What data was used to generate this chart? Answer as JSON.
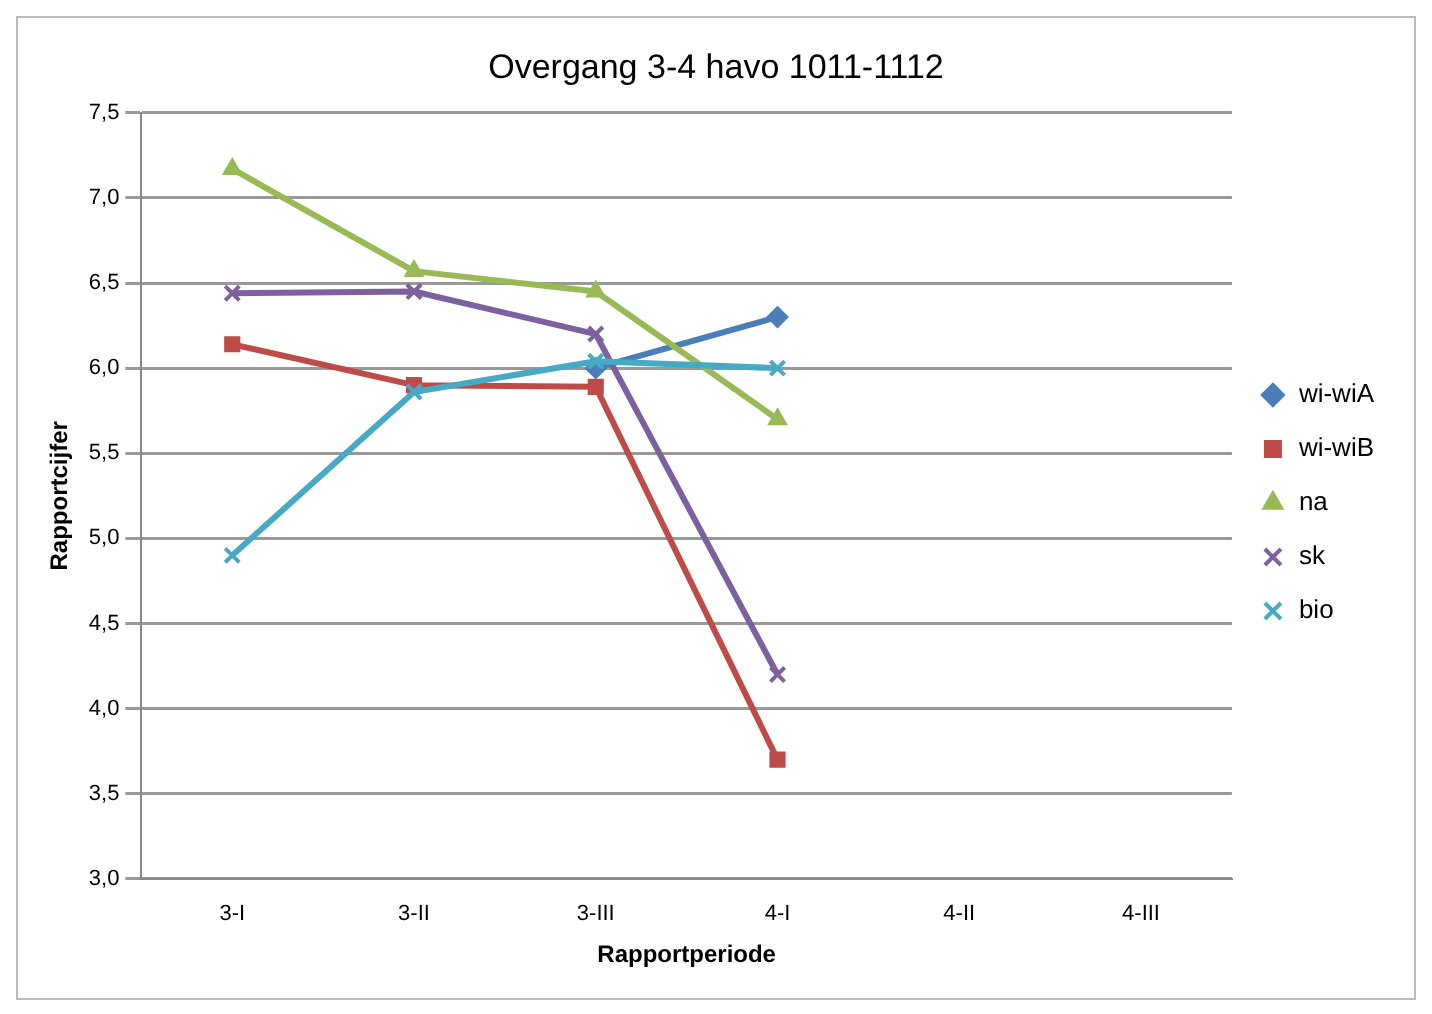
{
  "chart_data": {
    "type": "line",
    "title": "Overgang 3-4 havo 1011-1112",
    "xlabel": "Rapportperiode",
    "ylabel": "Rapportcijfer",
    "categories": [
      "3-I",
      "3-II",
      "3-III",
      "4-I",
      "4-II",
      "4-III"
    ],
    "series": [
      {
        "name": "wi-wiA",
        "color": "#4a7ebb",
        "marker": "diamond",
        "values": [
          null,
          null,
          6.0,
          6.3,
          null,
          null
        ]
      },
      {
        "name": "wi-wiB",
        "color": "#be4b48",
        "marker": "square",
        "values": [
          6.14,
          5.9,
          5.89,
          3.7,
          null,
          null
        ]
      },
      {
        "name": "na",
        "color": "#98b954",
        "marker": "triangle",
        "values": [
          7.17,
          6.57,
          6.45,
          5.7,
          null,
          null
        ]
      },
      {
        "name": "sk",
        "color": "#7d60a0",
        "marker": "cross",
        "values": [
          6.44,
          6.45,
          6.2,
          4.2,
          null,
          null
        ]
      },
      {
        "name": "bio",
        "color": "#46aac5",
        "marker": "cross",
        "values": [
          4.9,
          5.86,
          6.04,
          6.0,
          null,
          null
        ]
      }
    ],
    "ylim": [
      3.0,
      7.5
    ],
    "yticks": [
      {
        "value": 3.0,
        "label": "3,0"
      },
      {
        "value": 3.5,
        "label": "3,5"
      },
      {
        "value": 4.0,
        "label": "4,0"
      },
      {
        "value": 4.5,
        "label": "4,5"
      },
      {
        "value": 5.0,
        "label": "5,0"
      },
      {
        "value": 5.5,
        "label": "5,5"
      },
      {
        "value": 6.0,
        "label": "6,0"
      },
      {
        "value": 6.5,
        "label": "6,5"
      },
      {
        "value": 7.0,
        "label": "7,0"
      },
      {
        "value": 7.5,
        "label": "7,5"
      }
    ],
    "grid": "y",
    "legend": "right"
  }
}
